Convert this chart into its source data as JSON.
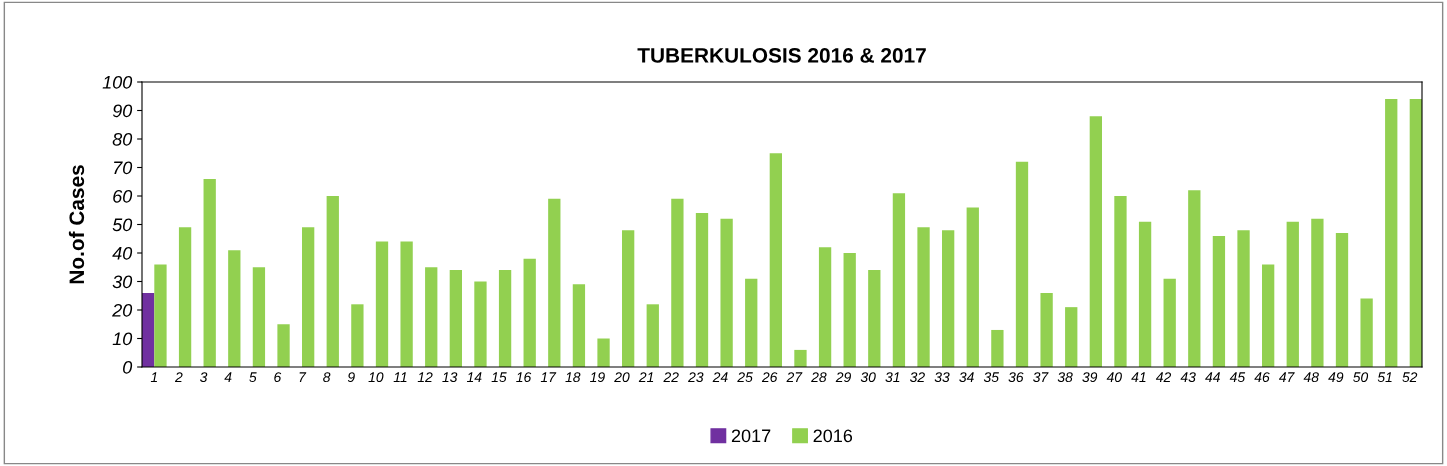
{
  "chart_data": {
    "type": "bar",
    "title": "TUBERKULOSIS 2016 & 2017",
    "ylabel": "No.of Cases",
    "categories": [
      "1",
      "2",
      "3",
      "4",
      "5",
      "6",
      "7",
      "8",
      "9",
      "10",
      "11",
      "12",
      "13",
      "14",
      "15",
      "16",
      "17",
      "18",
      "19",
      "20",
      "21",
      "22",
      "23",
      "24",
      "25",
      "26",
      "27",
      "28",
      "29",
      "30",
      "31",
      "32",
      "33",
      "34",
      "35",
      "36",
      "37",
      "38",
      "39",
      "40",
      "41",
      "42",
      "43",
      "44",
      "45",
      "46",
      "47",
      "48",
      "49",
      "50",
      "51",
      "52"
    ],
    "series": [
      {
        "name": "2017",
        "color": "#7030a0",
        "values": [
          26,
          null,
          null,
          null,
          null,
          null,
          null,
          null,
          null,
          null,
          null,
          null,
          null,
          null,
          null,
          null,
          null,
          null,
          null,
          null,
          null,
          null,
          null,
          null,
          null,
          null,
          null,
          null,
          null,
          null,
          null,
          null,
          null,
          null,
          null,
          null,
          null,
          null,
          null,
          null,
          null,
          null,
          null,
          null,
          null,
          null,
          null,
          null,
          null,
          null,
          null,
          null
        ]
      },
      {
        "name": "2016",
        "color": "#92d050",
        "values": [
          36,
          49,
          66,
          41,
          35,
          15,
          49,
          60,
          22,
          44,
          44,
          35,
          34,
          30,
          34,
          38,
          59,
          29,
          10,
          48,
          22,
          59,
          54,
          52,
          31,
          75,
          6,
          42,
          40,
          34,
          61,
          49,
          48,
          56,
          13,
          72,
          26,
          21,
          88,
          60,
          51,
          31,
          62,
          46,
          48,
          36,
          51,
          52,
          47,
          24,
          94,
          94
        ]
      }
    ],
    "ylim": [
      0,
      100
    ],
    "yticks": [
      0,
      10,
      20,
      30,
      40,
      50,
      60,
      70,
      80,
      90,
      100
    ],
    "grid": false,
    "legend": "bottom"
  }
}
